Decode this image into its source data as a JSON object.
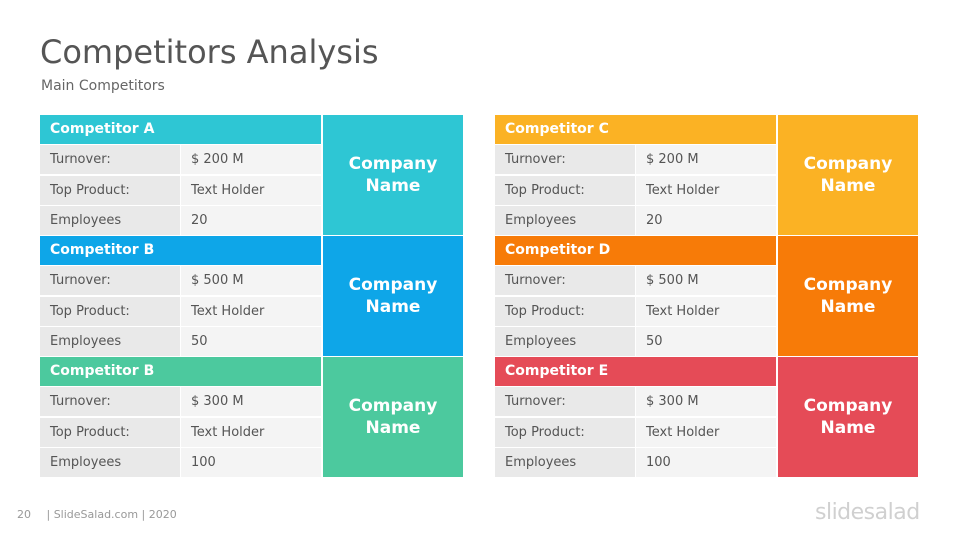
{
  "header": {
    "title": "Competitors Analysis",
    "subtitle": "Main Competitors"
  },
  "left": [
    {
      "name": "Competitor A",
      "color": "#2ec6d4",
      "tile": "Company Name",
      "rows": [
        {
          "label": "Turnover:",
          "value": "$ 200  M"
        },
        {
          "label": "Top Product:",
          "value": "Text Holder"
        },
        {
          "label": "Employees",
          "value": "20"
        }
      ]
    },
    {
      "name": "Competitor B",
      "color": "#0ea6e8",
      "tile": "Company Name",
      "rows": [
        {
          "label": "Turnover:",
          "value": "$ 500  M"
        },
        {
          "label": "Top Product:",
          "value": "Text Holder"
        },
        {
          "label": "Employees",
          "value": "50"
        }
      ]
    },
    {
      "name": "Competitor B",
      "color": "#4cc99e",
      "tile": "Company Name",
      "rows": [
        {
          "label": "Turnover:",
          "value": "$ 300  M"
        },
        {
          "label": "Top Product:",
          "value": "Text Holder"
        },
        {
          "label": "Employees",
          "value": "100"
        }
      ]
    }
  ],
  "right": [
    {
      "name": "Competitor C",
      "color": "#fbb224",
      "tile": "Company Name",
      "rows": [
        {
          "label": "Turnover:",
          "value": "$ 200  M"
        },
        {
          "label": "Top Product:",
          "value": "Text Holder"
        },
        {
          "label": "Employees",
          "value": "20"
        }
      ]
    },
    {
      "name": "Competitor D",
      "color": "#f77b08",
      "tile": "Company Name",
      "rows": [
        {
          "label": "Turnover:",
          "value": "$ 500  M"
        },
        {
          "label": "Top Product:",
          "value": "Text Holder"
        },
        {
          "label": "Employees",
          "value": "50"
        }
      ]
    },
    {
      "name": "Competitor E",
      "color": "#e54b57",
      "tile": "Company Name",
      "rows": [
        {
          "label": "Turnover:",
          "value": "$ 300  M"
        },
        {
          "label": "Top Product:",
          "value": "Text Holder"
        },
        {
          "label": "Employees",
          "value": "100"
        }
      ]
    }
  ],
  "footer": {
    "page": "20",
    "credit": "| SlideSalad.com | 2020"
  },
  "logo": {
    "text": "slidesalad"
  }
}
